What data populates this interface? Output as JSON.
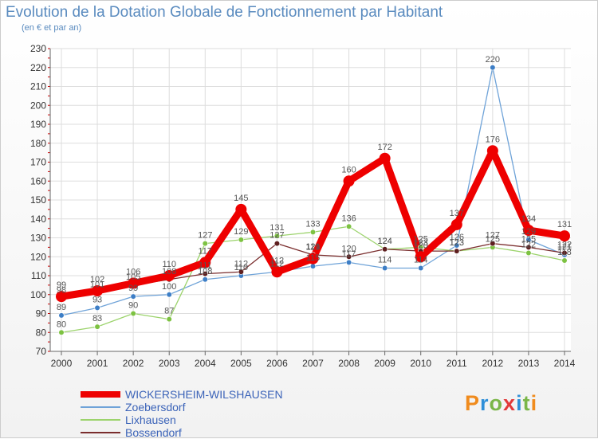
{
  "chart_data": {
    "type": "line",
    "title": "Evolution de la Dotation Globale de Fonctionnement par Habitant",
    "subtitle": "(en € et par an)",
    "xlabel": "",
    "ylabel": "",
    "ylim": [
      70,
      230
    ],
    "yticks": [
      70,
      80,
      90,
      100,
      110,
      120,
      130,
      140,
      150,
      160,
      170,
      180,
      190,
      200,
      210,
      220,
      230
    ],
    "categories": [
      "2000",
      "2001",
      "2002",
      "2003",
      "2004",
      "2005",
      "2006",
      "2007",
      "2008",
      "2009",
      "2010",
      "2011",
      "2012",
      "2013",
      "2014"
    ],
    "grid": true,
    "legend_position": "bottom-left",
    "series": [
      {
        "name": "Zoebersdorf",
        "color": "#6fa3d8",
        "marker": "#3d7ec6",
        "values": [
          89,
          93,
          99,
          100,
          108,
          110,
          112,
          115,
          117,
          114,
          114,
          126,
          220,
          129,
          121
        ]
      },
      {
        "name": "Lixhausen",
        "color": "#9cd36c",
        "marker": "#7dc242",
        "values": [
          80,
          83,
          90,
          87,
          127,
          129,
          131,
          133,
          136,
          124,
          125,
          123,
          125,
          122,
          118
        ]
      },
      {
        "name": "Bossendorf",
        "color": "#7a2d2d",
        "marker": "#5e1f1f",
        "values": [
          98,
          101,
          105,
          108,
          111,
          112,
          127,
          121,
          120,
          124,
          123,
          123,
          127,
          125,
          122
        ]
      },
      {
        "name": "WICKERSHEIM-WILSHAUSEN",
        "color": "#ee0000",
        "marker": "#ee0000",
        "values": [
          99,
          102,
          106,
          110,
          117,
          145,
          112,
          119,
          160,
          172,
          120,
          137,
          176,
          134,
          131
        ]
      }
    ]
  },
  "legend": {
    "items": [
      {
        "label": "WICKERSHEIM-WILSHAUSEN",
        "color": "#ee0000"
      },
      {
        "label": "Zoebersdorf",
        "color": "#6fa3d8"
      },
      {
        "label": "Lixhausen",
        "color": "#9cd36c"
      },
      {
        "label": "Bossendorf",
        "color": "#7a2d2d"
      }
    ]
  },
  "logo": {
    "letters": [
      "P",
      "r",
      "o",
      "x",
      "i",
      "t",
      "i"
    ]
  }
}
